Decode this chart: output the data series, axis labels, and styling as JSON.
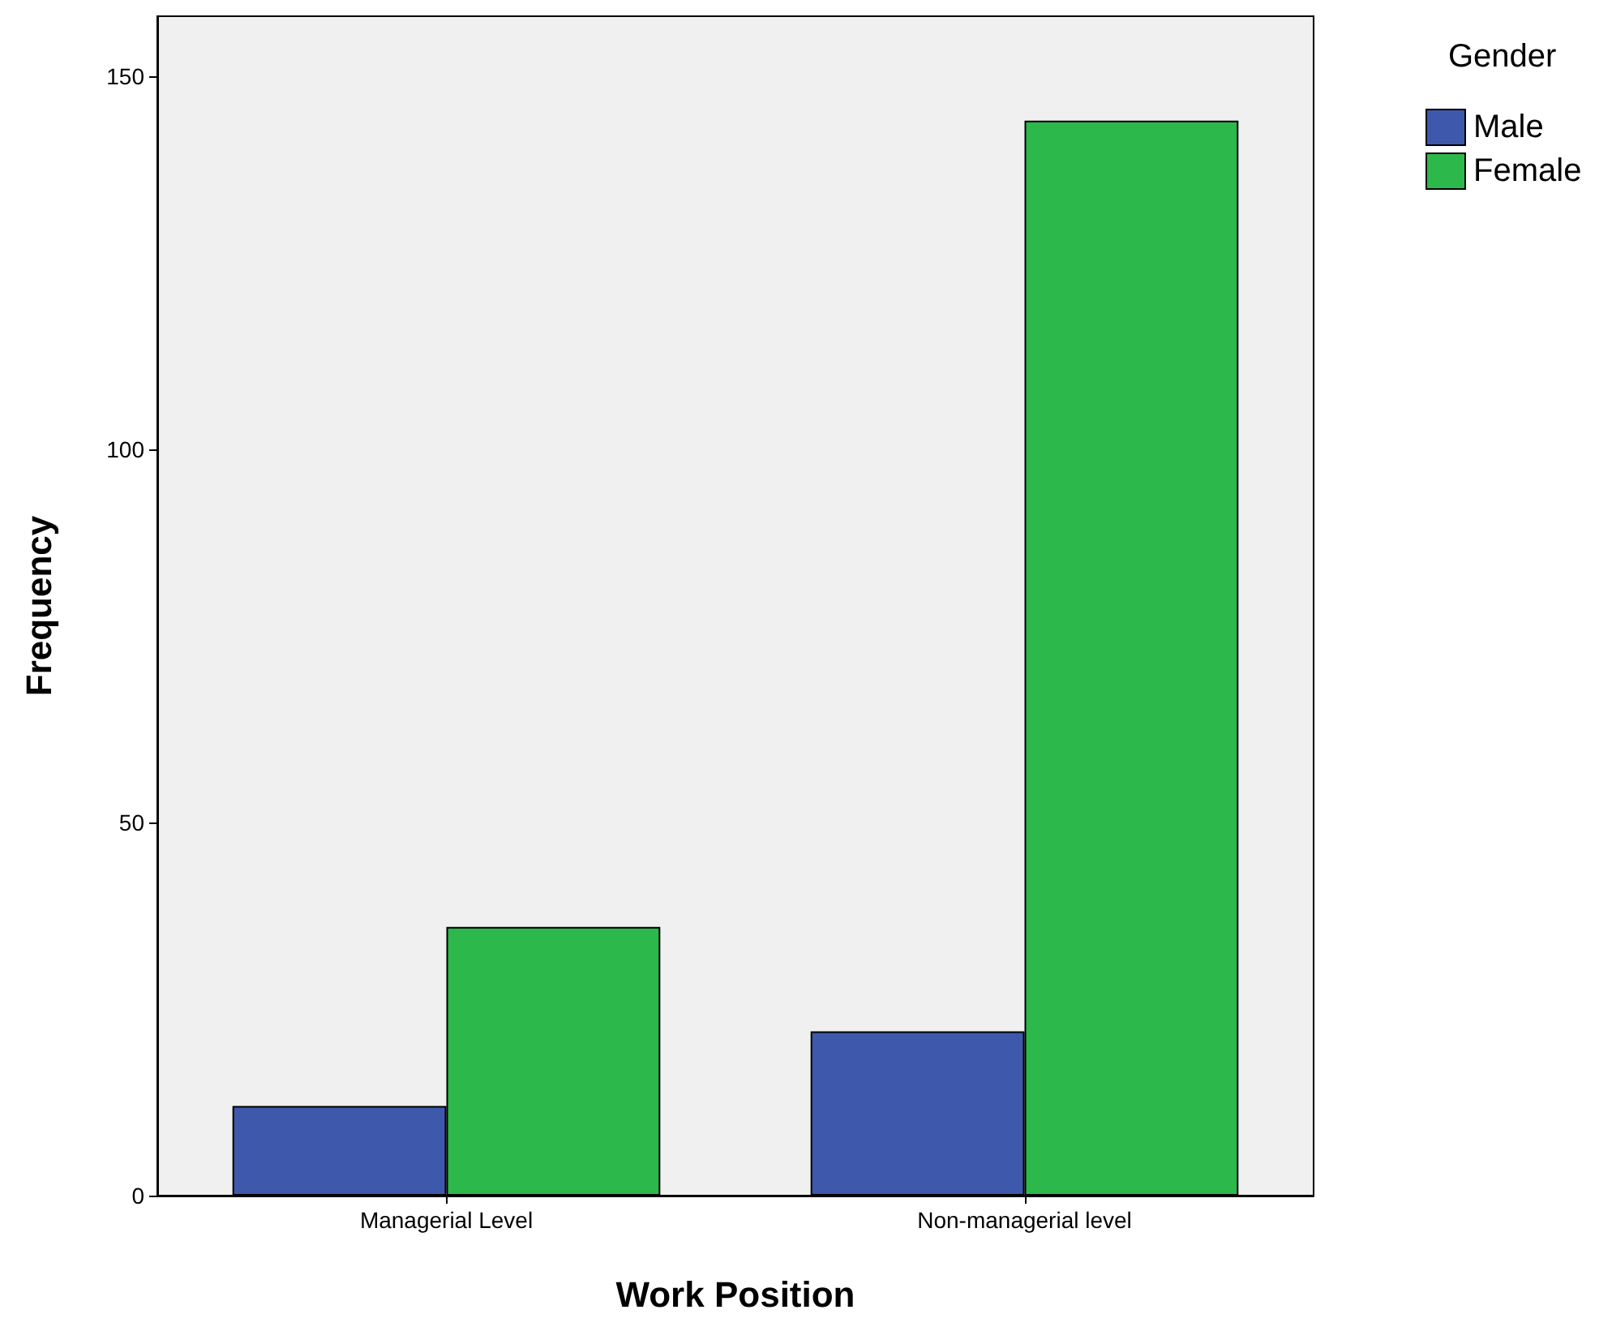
{
  "chart_data": {
    "type": "bar",
    "xlabel": "Work Position",
    "ylabel": "Frequency",
    "legend_title": "Gender",
    "categories": [
      "Managerial Level",
      "Non-managerial level"
    ],
    "series": [
      {
        "name": "Male",
        "color": "#3e58ac",
        "values": [
          12,
          22
        ]
      },
      {
        "name": "Female",
        "color": "#2db84b",
        "values": [
          36,
          144
        ]
      }
    ],
    "ylim": [
      0,
      158
    ],
    "yticks": [
      0,
      50,
      100,
      150
    ],
    "grid": false,
    "legend": "top right"
  }
}
